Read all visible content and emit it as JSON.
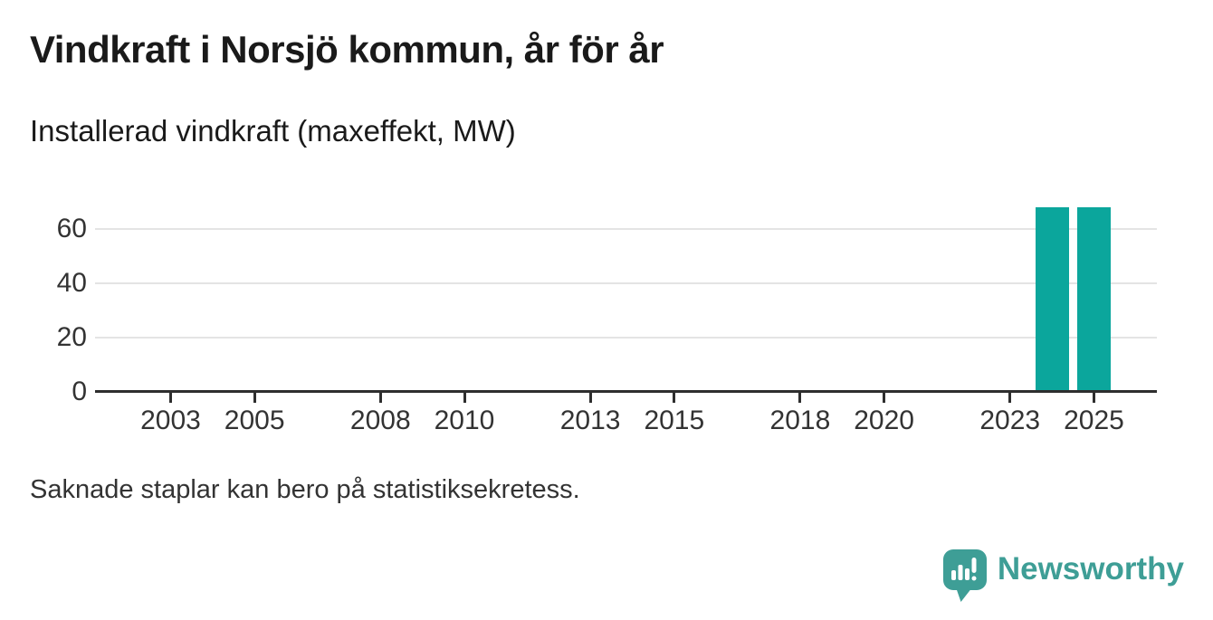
{
  "header": {
    "title": "Vindkraft i Norsjö kommun, år för år",
    "subtitle": "Installerad vindkraft (maxeffekt, MW)"
  },
  "footer": {
    "note": "Saknade staplar kan bero på statistiksekretess.",
    "brand": "Newsworthy"
  },
  "colors": {
    "bar": "#0ba69c",
    "brand": "#3e9e96",
    "grid": "#e4e4e4",
    "axis": "#2e2e2e",
    "title_text": "#1a1a1a",
    "label_text": "#333333"
  },
  "chart_data": {
    "type": "bar",
    "title": "Vindkraft i Norsjö kommun, år för år",
    "subtitle": "Installerad vindkraft (maxeffekt, MW)",
    "ylabel": "Installerad vindkraft (maxeffekt, MW)",
    "xlabel": "",
    "unit": "MW",
    "x_tick_labels": [
      "2003",
      "2005",
      "2008",
      "2010",
      "2013",
      "2015",
      "2018",
      "2020",
      "2023",
      "2025"
    ],
    "y_tick_labels": [
      "0",
      "20",
      "40",
      "60"
    ],
    "xlim": [
      2001.2,
      2026.5
    ],
    "ylim": [
      0,
      70
    ],
    "grid": "horizontal",
    "legend": "none",
    "bars": [
      {
        "year": 2024,
        "value": 68
      },
      {
        "year": 2025,
        "value": 68
      }
    ],
    "missing_years_note": "Saknade staplar kan bero på statistiksekretess."
  }
}
